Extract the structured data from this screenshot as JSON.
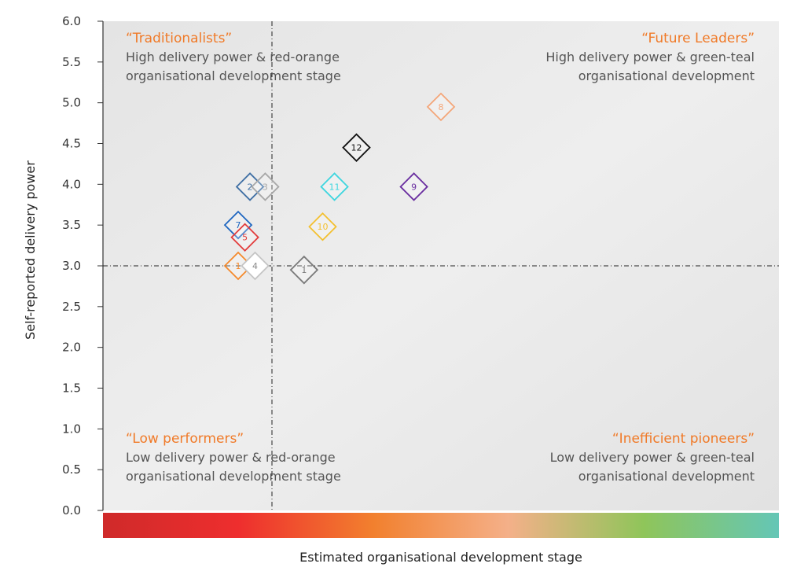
{
  "chart_data": {
    "type": "scatter",
    "title": "",
    "xlabel": "Estimated organisational development stage",
    "ylabel": "Self-reported delivery power",
    "x_axis": {
      "tick_labels": [],
      "gradient_scale": [
        "red",
        "orange",
        "peach",
        "green",
        "teal"
      ]
    },
    "ylim": [
      0.0,
      6.0
    ],
    "y_ticks": [
      "0.0",
      "0.5",
      "1.0",
      "1.5",
      "2.0",
      "2.5",
      "3.0",
      "3.5",
      "4.0",
      "4.5",
      "5.0",
      "5.5",
      "6.0"
    ],
    "reference_lines": {
      "y": 3.0,
      "x": 5.0,
      "style": "dash-dot"
    },
    "xlim": [
      0,
      20
    ],
    "grid": false,
    "legend": "none",
    "quadrants": [
      {
        "name": "traditionalists",
        "title": "“Traditionalists”",
        "subtitle": [
          "High delivery power & red-orange",
          "organisational development stage"
        ],
        "align": "left",
        "anchor": "top-left"
      },
      {
        "name": "future-leaders",
        "title": "“Future Leaders”",
        "subtitle": [
          "High delivery power & green-teal",
          "organisational development"
        ],
        "align": "right",
        "anchor": "top-right"
      },
      {
        "name": "low-performers",
        "title": "“Low performers”",
        "subtitle": [
          "Low delivery power & red-orange",
          "organisational development stage"
        ],
        "align": "left",
        "anchor": "bottom-left"
      },
      {
        "name": "inefficient-pioneers",
        "title": "“Inefficient pioneers”",
        "subtitle": [
          "Low delivery power & green-teal",
          "organisational development"
        ],
        "align": "right",
        "anchor": "bottom-right"
      }
    ],
    "points": [
      {
        "label": "2",
        "x": 4.35,
        "y": 3.97,
        "color": "#3f6fa4",
        "fill": "none"
      },
      {
        "label": "3",
        "x": 4.8,
        "y": 3.97,
        "color": "#a8a8a8",
        "fill": "none"
      },
      {
        "label": "7",
        "x": 4.0,
        "y": 3.5,
        "color": "#1e66c0",
        "fill": "none"
      },
      {
        "label": "5",
        "x": 4.2,
        "y": 3.35,
        "color": "#e23b3b",
        "fill": "none"
      },
      {
        "label": "1",
        "x": 4.0,
        "y": 3.0,
        "color": "#f5892b",
        "fill": "none"
      },
      {
        "label": "4",
        "x": 4.5,
        "y": 3.0,
        "color": "#c4c4c4",
        "fill": "#ffffff"
      },
      {
        "label": "1",
        "x": 5.95,
        "y": 2.95,
        "color": "#7a7a7a",
        "fill": "none"
      },
      {
        "label": "10",
        "x": 6.5,
        "y": 3.48,
        "color": "#f3c030",
        "fill": "none"
      },
      {
        "label": "11",
        "x": 6.85,
        "y": 3.97,
        "color": "#3fd6df",
        "fill": "none"
      },
      {
        "label": "12",
        "x": 7.5,
        "y": 4.45,
        "color": "#111111",
        "fill": "none"
      },
      {
        "label": "9",
        "x": 9.2,
        "y": 3.97,
        "color": "#6a2fa0",
        "fill": "none"
      },
      {
        "label": "8",
        "x": 10.0,
        "y": 4.95,
        "color": "#f4a679",
        "fill": "none"
      }
    ],
    "colors": {
      "quadrant_title": "#f07a28",
      "quadrant_text": "#555555",
      "gradient_stops": [
        "#cf2a2a",
        "#ee2e2e",
        "#f2802e",
        "#f4b089",
        "#8fc55a",
        "#64c6b6"
      ]
    }
  }
}
